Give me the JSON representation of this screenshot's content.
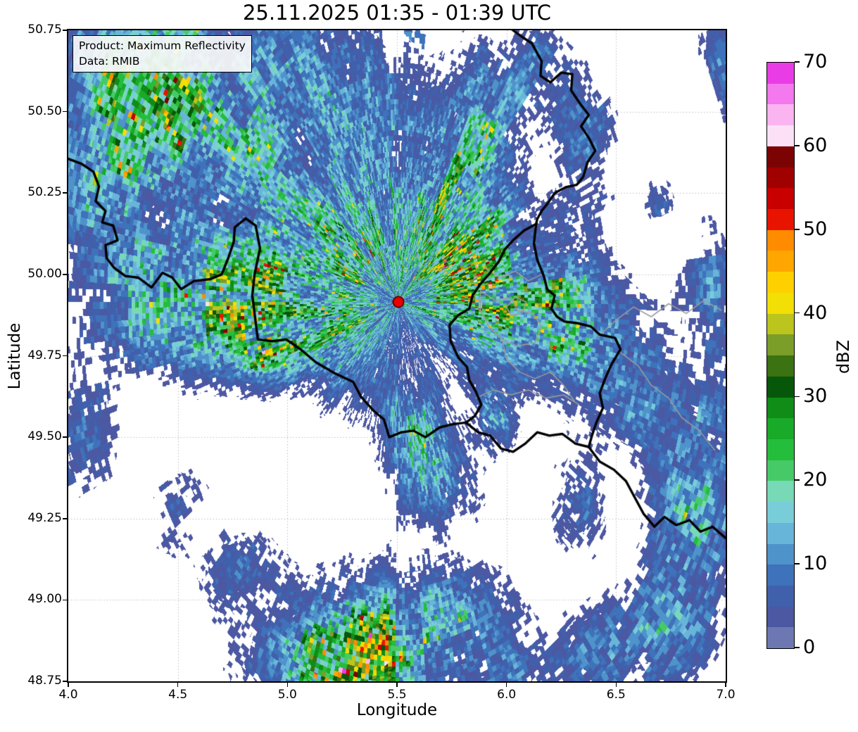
{
  "chart_data": {
    "type": "heatmap",
    "subtype": "weather-radar-composite-map",
    "title": "25.11.2025 01:35 - 01:39 UTC",
    "xlabel": "Longitude",
    "ylabel": "Latitude",
    "xlim": [
      4.0,
      7.0
    ],
    "ylim": [
      48.75,
      50.75
    ],
    "xticks": [
      "4.0",
      "4.5",
      "5.0",
      "5.5",
      "6.0",
      "6.5",
      "7.0"
    ],
    "yticks": [
      "48.75",
      "49.00",
      "49.25",
      "49.50",
      "49.75",
      "50.00",
      "50.25",
      "50.50",
      "50.75"
    ],
    "grid": "dotted",
    "grid_color": "#bbbbbb",
    "annotation": {
      "line1": "Product: Maximum Reflectivity",
      "line2": "Data: RMIB"
    },
    "colorbar": {
      "label": "dBZ",
      "min": 0,
      "max": 70,
      "ticks": [
        "0",
        "10",
        "20",
        "30",
        "40",
        "50",
        "60",
        "70"
      ],
      "band_step_dbz": 2.5,
      "band_colors_low_to_high": [
        "#6d78b2",
        "#4c58a2",
        "#4160ac",
        "#3e72ba",
        "#4e93ca",
        "#68b5da",
        "#79cdd9",
        "#77d9b6",
        "#46ca67",
        "#25bd3c",
        "#18aa28",
        "#0f8d16",
        "#07570a",
        "#3b7212",
        "#7b9e28",
        "#bcc41e",
        "#f2df05",
        "#ffd000",
        "#ffa600",
        "#ff8c00",
        "#e81400",
        "#c80000",
        "#a00000",
        "#7c0303",
        "#fce1f6",
        "#fab4f0",
        "#f478ee",
        "#ea3ce6"
      ]
    },
    "radar_site": {
      "lon": 5.505,
      "lat": 49.915,
      "marker_color": "#e60000",
      "marker_edge": "#6b0000"
    },
    "cells_format": [
      "lon",
      "lat",
      "sigma_lon_deg",
      "sigma_lat_deg",
      "rotation_deg",
      "peak_dbz"
    ],
    "cells": [
      [
        4.38,
        50.6,
        0.42,
        0.3,
        0,
        32
      ],
      [
        4.2,
        50.26,
        0.28,
        0.22,
        20,
        22
      ],
      [
        4.85,
        50.4,
        0.45,
        0.3,
        -15,
        20
      ],
      [
        5.28,
        50.6,
        0.3,
        0.2,
        -30,
        14
      ],
      [
        4.62,
        49.92,
        0.48,
        0.2,
        5,
        38
      ],
      [
        4.93,
        49.81,
        0.2,
        0.12,
        0,
        42
      ],
      [
        5.28,
        49.87,
        0.16,
        0.24,
        0,
        26
      ],
      [
        5.42,
        50.18,
        0.25,
        0.28,
        0,
        12
      ],
      [
        5.76,
        50.12,
        0.26,
        0.3,
        20,
        36
      ],
      [
        5.88,
        50.45,
        0.16,
        0.24,
        10,
        18
      ],
      [
        6.35,
        50.42,
        0.13,
        0.2,
        15,
        15
      ],
      [
        6.12,
        50.62,
        0.18,
        0.16,
        0,
        13
      ],
      [
        6.08,
        49.89,
        0.34,
        0.17,
        -12,
        34
      ],
      [
        6.55,
        49.68,
        0.38,
        0.2,
        -35,
        18
      ],
      [
        6.93,
        49.97,
        0.13,
        0.24,
        0,
        13
      ],
      [
        6.9,
        49.28,
        0.2,
        0.28,
        -20,
        24
      ],
      [
        6.74,
        48.94,
        0.24,
        0.2,
        0,
        24
      ],
      [
        5.45,
        48.87,
        0.5,
        0.2,
        5,
        34
      ],
      [
        5.22,
        48.83,
        0.25,
        0.12,
        0,
        38
      ],
      [
        5.66,
        49.4,
        0.2,
        0.16,
        0,
        20
      ],
      [
        5.57,
        49.56,
        0.14,
        0.11,
        0,
        20
      ],
      [
        4.77,
        49.1,
        0.17,
        0.11,
        20,
        12
      ],
      [
        4.07,
        49.5,
        0.14,
        0.2,
        0,
        14
      ],
      [
        5.95,
        49.55,
        0.09,
        0.09,
        0,
        24
      ],
      [
        6.32,
        49.3,
        0.11,
        0.14,
        0,
        14
      ],
      [
        6.42,
        48.84,
        0.17,
        0.11,
        0,
        20
      ],
      [
        5.5,
        49.92,
        0.3,
        0.24,
        0,
        8
      ],
      [
        6.99,
        50.66,
        0.1,
        0.17,
        0,
        14
      ],
      [
        6.7,
        50.22,
        0.07,
        0.07,
        0,
        12
      ],
      [
        4.48,
        49.28,
        0.2,
        0.14,
        0,
        8
      ],
      [
        5.05,
        50.1,
        0.25,
        0.2,
        0,
        16
      ],
      [
        6.28,
        50.05,
        0.12,
        0.18,
        0,
        10
      ],
      [
        6.1,
        48.78,
        0.2,
        0.08,
        0,
        10
      ]
    ],
    "borders": {
      "country_color": "#000000",
      "country_width": 3.4,
      "region_color": "#9c9c9c",
      "region_width": 1.6,
      "country": [
        [
          [
            4.0,
            50.355
          ],
          [
            4.06,
            50.34
          ],
          [
            4.115,
            50.315
          ],
          [
            4.14,
            50.27
          ],
          [
            4.125,
            50.225
          ],
          [
            4.17,
            50.195
          ],
          [
            4.155,
            50.16
          ],
          [
            4.205,
            50.15
          ],
          [
            4.225,
            50.105
          ],
          [
            4.17,
            50.09
          ],
          [
            4.175,
            50.05
          ],
          [
            4.21,
            50.02
          ],
          [
            4.26,
            49.995
          ],
          [
            4.32,
            49.99
          ],
          [
            4.38,
            49.96
          ],
          [
            4.43,
            50.005
          ],
          [
            4.475,
            49.99
          ],
          [
            4.515,
            49.955
          ],
          [
            4.575,
            49.98
          ],
          [
            4.645,
            49.985
          ],
          [
            4.7,
            50.0
          ],
          [
            4.73,
            50.05
          ],
          [
            4.755,
            50.1
          ],
          [
            4.76,
            50.145
          ],
          [
            4.81,
            50.172
          ],
          [
            4.855,
            50.15
          ],
          [
            4.875,
            50.08
          ],
          [
            4.85,
            50.0
          ],
          [
            4.84,
            49.935
          ],
          [
            4.865,
            49.8
          ],
          [
            4.93,
            49.795
          ],
          [
            4.995,
            49.8
          ],
          [
            5.06,
            49.77
          ],
          [
            5.13,
            49.73
          ],
          [
            5.22,
            49.695
          ],
          [
            5.3,
            49.67
          ],
          [
            5.335,
            49.625
          ],
          [
            5.395,
            49.58
          ],
          [
            5.44,
            49.555
          ],
          [
            5.465,
            49.5
          ],
          [
            5.52,
            49.515
          ],
          [
            5.575,
            49.52
          ],
          [
            5.63,
            49.5
          ],
          [
            5.695,
            49.53
          ],
          [
            5.755,
            49.54
          ],
          [
            5.815,
            49.545
          ]
        ],
        [
          [
            6.02,
            50.755
          ],
          [
            6.07,
            50.73
          ],
          [
            6.115,
            50.71
          ],
          [
            6.16,
            50.655
          ],
          [
            6.155,
            50.61
          ],
          [
            6.2,
            50.59
          ],
          [
            6.25,
            50.62
          ],
          [
            6.3,
            50.615
          ],
          [
            6.295,
            50.565
          ],
          [
            6.335,
            50.525
          ],
          [
            6.375,
            50.49
          ],
          [
            6.34,
            50.455
          ],
          [
            6.375,
            50.42
          ],
          [
            6.405,
            50.38
          ],
          [
            6.37,
            50.345
          ],
          [
            6.35,
            50.3
          ],
          [
            6.32,
            50.275
          ],
          [
            6.27,
            50.268
          ],
          [
            6.22,
            50.25
          ],
          [
            6.19,
            50.22
          ],
          [
            6.16,
            50.195
          ],
          [
            6.14,
            50.17
          ],
          [
            6.135,
            50.155
          ]
        ],
        [
          [
            6.135,
            50.155
          ],
          [
            6.125,
            50.095
          ],
          [
            6.14,
            50.045
          ],
          [
            6.17,
            49.995
          ],
          [
            6.185,
            49.955
          ],
          [
            6.22,
            49.935
          ],
          [
            6.205,
            49.895
          ],
          [
            6.23,
            49.87
          ],
          [
            6.265,
            49.855
          ],
          [
            6.325,
            49.85
          ],
          [
            6.385,
            49.84
          ],
          [
            6.425,
            49.815
          ],
          [
            6.495,
            49.805
          ],
          [
            6.52,
            49.77
          ],
          [
            6.48,
            49.725
          ],
          [
            6.45,
            49.68
          ],
          [
            6.425,
            49.635
          ],
          [
            6.44,
            49.59
          ],
          [
            6.41,
            49.545
          ],
          [
            6.39,
            49.505
          ],
          [
            6.375,
            49.47
          ]
        ],
        [
          [
            6.375,
            49.47
          ],
          [
            6.315,
            49.48
          ],
          [
            6.255,
            49.51
          ],
          [
            6.195,
            49.505
          ],
          [
            6.14,
            49.515
          ],
          [
            6.085,
            49.48
          ],
          [
            6.03,
            49.455
          ],
          [
            5.975,
            49.465
          ],
          [
            5.925,
            49.505
          ],
          [
            5.87,
            49.515
          ],
          [
            5.815,
            49.545
          ]
        ],
        [
          [
            5.815,
            49.545
          ],
          [
            5.855,
            49.565
          ],
          [
            5.885,
            49.6
          ],
          [
            5.86,
            49.64
          ],
          [
            5.83,
            49.675
          ],
          [
            5.82,
            49.715
          ],
          [
            5.78,
            49.745
          ],
          [
            5.745,
            49.795
          ],
          [
            5.74,
            49.845
          ],
          [
            5.78,
            49.875
          ],
          [
            5.83,
            49.895
          ],
          [
            5.845,
            49.935
          ],
          [
            5.88,
            49.97
          ],
          [
            5.925,
            50.005
          ],
          [
            5.965,
            50.04
          ],
          [
            5.99,
            50.075
          ],
          [
            6.03,
            50.105
          ],
          [
            6.08,
            50.135
          ],
          [
            6.135,
            50.155
          ]
        ],
        [
          [
            6.375,
            49.47
          ],
          [
            6.425,
            49.425
          ],
          [
            6.49,
            49.4
          ],
          [
            6.545,
            49.365
          ],
          [
            6.585,
            49.315
          ],
          [
            6.625,
            49.265
          ],
          [
            6.675,
            49.225
          ],
          [
            6.72,
            49.255
          ],
          [
            6.775,
            49.23
          ],
          [
            6.835,
            49.245
          ],
          [
            6.885,
            49.21
          ],
          [
            6.94,
            49.225
          ],
          [
            7.0,
            49.19
          ]
        ]
      ],
      "region": [
        [
          [
            5.88,
            49.95
          ],
          [
            5.95,
            49.92
          ],
          [
            6.02,
            49.93
          ],
          [
            6.05,
            49.89
          ],
          [
            6.12,
            49.88
          ],
          [
            6.16,
            49.84
          ],
          [
            6.13,
            49.79
          ],
          [
            6.05,
            49.78
          ],
          [
            5.98,
            49.8
          ],
          [
            5.92,
            49.84
          ],
          [
            5.88,
            49.89
          ],
          [
            5.88,
            49.95
          ]
        ],
        [
          [
            5.98,
            49.8
          ],
          [
            6.0,
            49.74
          ],
          [
            6.06,
            49.7
          ],
          [
            6.13,
            49.68
          ],
          [
            6.2,
            49.7
          ],
          [
            6.26,
            49.66
          ],
          [
            6.31,
            49.61
          ]
        ],
        [
          [
            5.86,
            49.62
          ],
          [
            5.94,
            49.645
          ],
          [
            6.02,
            49.63
          ],
          [
            6.1,
            49.645
          ],
          [
            6.18,
            49.62
          ],
          [
            6.26,
            49.63
          ],
          [
            6.33,
            49.6
          ]
        ],
        [
          [
            6.42,
            49.81
          ],
          [
            6.5,
            49.86
          ],
          [
            6.58,
            49.9
          ],
          [
            6.66,
            49.87
          ],
          [
            6.74,
            49.91
          ],
          [
            6.82,
            49.88
          ],
          [
            6.9,
            49.92
          ],
          [
            6.98,
            49.89
          ]
        ],
        [
          [
            6.52,
            49.76
          ],
          [
            6.6,
            49.72
          ],
          [
            6.66,
            49.66
          ],
          [
            6.74,
            49.62
          ],
          [
            6.8,
            49.56
          ],
          [
            6.88,
            49.52
          ],
          [
            6.95,
            49.46
          ]
        ],
        [
          [
            5.9,
            50.02
          ],
          [
            5.97,
            49.99
          ],
          [
            6.04,
            50.01
          ],
          [
            6.1,
            49.98
          ],
          [
            6.16,
            50.0
          ]
        ],
        [
          [
            6.0,
            49.9
          ],
          [
            6.04,
            49.93
          ],
          [
            6.09,
            49.915
          ],
          [
            6.07,
            49.88
          ],
          [
            6.02,
            49.875
          ],
          [
            6.0,
            49.9
          ]
        ]
      ]
    }
  }
}
